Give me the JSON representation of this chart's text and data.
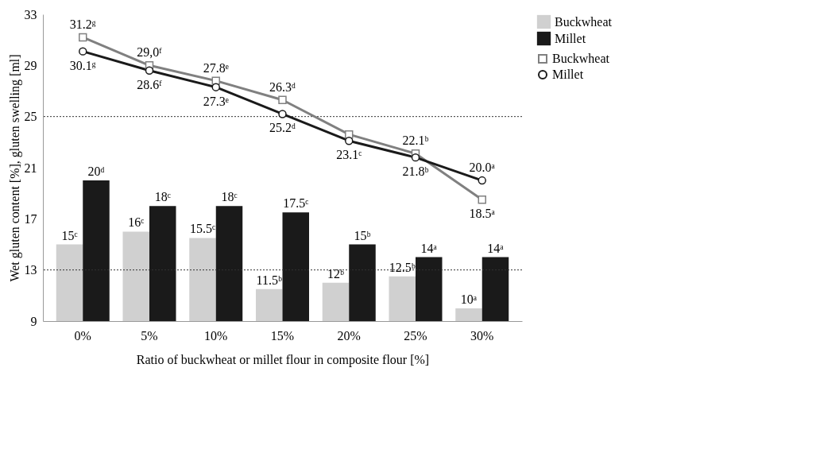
{
  "chart_data": {
    "type": "bar",
    "categories": [
      "0%",
      "5%",
      "10%",
      "15%",
      "20%",
      "25%",
      "30%"
    ],
    "xlabel": "Ratio of buckwheat or millet flour in composite flour [%]",
    "ylabel": "Wet gluten content [%], gluten swelling [ml]",
    "ylim": [
      9,
      33
    ],
    "yticks": [
      9,
      13,
      17,
      21,
      25,
      29,
      33
    ],
    "grid": false,
    "legend": "right",
    "series": [
      {
        "name": "Buckwheat",
        "color": "#d0d0d0",
        "values": [
          15,
          16,
          15.5,
          11.5,
          12,
          12.5,
          10
        ],
        "value_labels": [
          "15ᶜ",
          "16ᶜ",
          "15.5ᶜ",
          "11.5ᵇ",
          "12ᵇ",
          "12.5ᵇ",
          "10ᵃ"
        ]
      },
      {
        "name": "Millet",
        "color": "#1a1a1a",
        "values": [
          20,
          18,
          18,
          17.5,
          15,
          14,
          14
        ],
        "value_labels": [
          "20ᵈ",
          "18ᶜ",
          "18ᶜ",
          "17.5ᶜ",
          "15ᵇ",
          "14ᵃ",
          "14ᵃ"
        ]
      },
      {
        "name": "Buckwheat",
        "type": "line",
        "color": "#808080",
        "marker": "square",
        "values": [
          31.2,
          29.0,
          27.8,
          26.3,
          23.6,
          22.1,
          18.5
        ],
        "value_labels": [
          "31.2ᵍ",
          "29,0ᶠ",
          "27.8ᵉ",
          "26.3ᵈ",
          null,
          "22.1ᵇ",
          "18.5ᵃ"
        ]
      },
      {
        "name": "Millet",
        "type": "line",
        "color": "#1a1a1a",
        "marker": "circle",
        "values": [
          30.1,
          28.6,
          27.3,
          25.2,
          23.1,
          21.8,
          20.0
        ],
        "value_labels": [
          "30.1ᵍ",
          "28.6ᶠ",
          "27.3ᵉ",
          "25.2ᵈ",
          "23.1ᶜ",
          "21.8ᵇ",
          "20.0ᵃ"
        ]
      }
    ],
    "ref_lines": [
      {
        "axis": "y",
        "value": 25,
        "line_style": "dotted",
        "color": "#333333"
      },
      {
        "axis": "y",
        "value": 13,
        "line_style": "dotted",
        "color": "#333333"
      }
    ]
  }
}
